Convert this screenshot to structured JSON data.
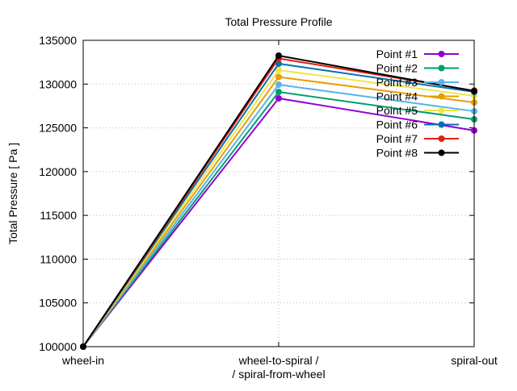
{
  "chart_data": {
    "type": "line",
    "title": "Total Pressure Profile",
    "xlabel": "",
    "ylabel": "Total Pressure [ Pa ]",
    "categories": [
      "wheel-in",
      "wheel-to-spiral /\n/ spiral-from-wheel",
      "spiral-out"
    ],
    "ylim": [
      100000,
      135000
    ],
    "yticks": [
      100000,
      105000,
      110000,
      115000,
      120000,
      125000,
      130000,
      135000
    ],
    "grid": true,
    "legend_position": "top-right",
    "series": [
      {
        "name": "Point #1",
        "color": "#9400d3",
        "values": [
          100000,
          128370,
          124700
        ]
      },
      {
        "name": "Point #2",
        "color": "#009e73",
        "values": [
          100000,
          129100,
          125970
        ]
      },
      {
        "name": "Point #3",
        "color": "#56b4e9",
        "values": [
          100000,
          129930,
          126900
        ]
      },
      {
        "name": "Point #4",
        "color": "#e69f00",
        "values": [
          100000,
          130810,
          127900
        ]
      },
      {
        "name": "Point #5",
        "color": "#f0e442",
        "values": [
          100000,
          131590,
          128650
        ]
      },
      {
        "name": "Point #6",
        "color": "#0072b2",
        "values": [
          100000,
          132330,
          129100
        ]
      },
      {
        "name": "Point #7",
        "color": "#e51e10",
        "values": [
          100000,
          132930,
          129250
        ]
      },
      {
        "name": "Point #8",
        "color": "#000000",
        "values": [
          100000,
          133250,
          129200
        ]
      }
    ]
  }
}
